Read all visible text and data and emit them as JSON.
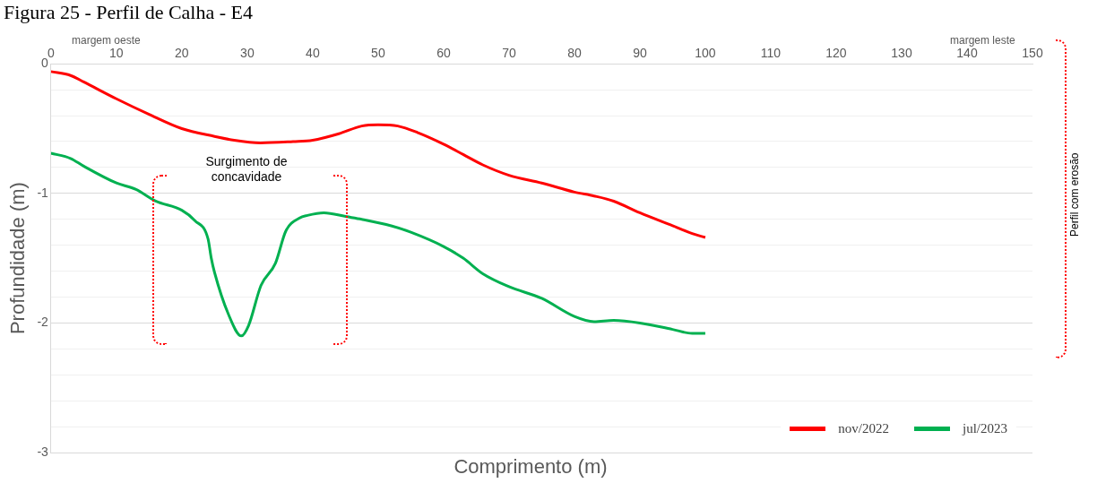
{
  "chart_data": {
    "type": "line",
    "title": "Figura 25 - Perfil de Calha - E4",
    "xlabel": "Comprimento (m)",
    "ylabel": "Profundidade (m)",
    "xlim": [
      0,
      150
    ],
    "xticks": [
      0,
      10,
      20,
      30,
      40,
      50,
      60,
      70,
      80,
      90,
      100,
      110,
      120,
      130,
      140,
      150
    ],
    "ylim": [
      -3,
      0
    ],
    "yticks": [
      0,
      {
        "value": -0.2,
        "label": null
      },
      {
        "value": -0.4,
        "label": null
      },
      {
        "value": -0.6,
        "label": null
      },
      {
        "value": -0.8,
        "label": null
      },
      -1,
      {
        "value": -1.2,
        "label": null
      },
      {
        "value": -1.4,
        "label": null
      },
      {
        "value": -1.6,
        "label": null
      },
      {
        "value": -1.8,
        "label": null
      },
      -2,
      {
        "value": -2.2,
        "label": null
      },
      {
        "value": -2.4,
        "label": null
      },
      {
        "value": -2.6,
        "label": null
      },
      {
        "value": -2.8,
        "label": null
      },
      -3
    ],
    "grid": "y",
    "legend": "bottom right",
    "marker": "none",
    "line_style": "solid",
    "annotations": [
      "margem oeste",
      "margem leste",
      "Surgimento de concavidade",
      "Perfil com erosão"
    ],
    "series": [
      {
        "name": "nov/2022",
        "color": "#ff0000",
        "x": [
          0,
          3,
          5,
          10,
          15,
          20,
          25,
          28,
          32,
          37,
          40,
          44,
          47.5,
          50,
          53,
          56,
          60,
          63,
          66,
          70,
          75,
          80,
          83,
          86,
          90,
          95,
          98,
          100
        ],
        "values": [
          -0.06,
          -0.09,
          -0.14,
          -0.27,
          -0.39,
          -0.5,
          -0.56,
          -0.59,
          -0.61,
          -0.6,
          -0.59,
          -0.54,
          -0.48,
          -0.47,
          -0.48,
          -0.53,
          -0.62,
          -0.7,
          -0.78,
          -0.86,
          -0.92,
          -0.99,
          -1.02,
          -1.06,
          -1.15,
          -1.25,
          -1.31,
          -1.34
        ]
      },
      {
        "name": "jul/2023",
        "color": "#00b050",
        "x": [
          0,
          3,
          5,
          10,
          13,
          16,
          20,
          22,
          24,
          24.5,
          25,
          27.1,
          29.1,
          30.2,
          32.1,
          34.3,
          35.9,
          38,
          39.2,
          41.7,
          45.2,
          47.5,
          52,
          55,
          60,
          63,
          66,
          70,
          75,
          80,
          83,
          86,
          90,
          95,
          98,
          100
        ],
        "values": [
          -0.69,
          -0.73,
          -0.79,
          -0.92,
          -0.97,
          -1.06,
          -1.13,
          -1.21,
          -1.35,
          -1.5,
          -1.61,
          -1.93,
          -2.1,
          -2.02,
          -1.71,
          -1.54,
          -1.29,
          -1.19,
          -1.17,
          -1.15,
          -1.18,
          -1.2,
          -1.25,
          -1.3,
          -1.41,
          -1.5,
          -1.62,
          -1.72,
          -1.81,
          -1.95,
          -1.99,
          -1.98,
          -2.0,
          -2.05,
          -2.08,
          -2.08
        ]
      }
    ]
  }
}
